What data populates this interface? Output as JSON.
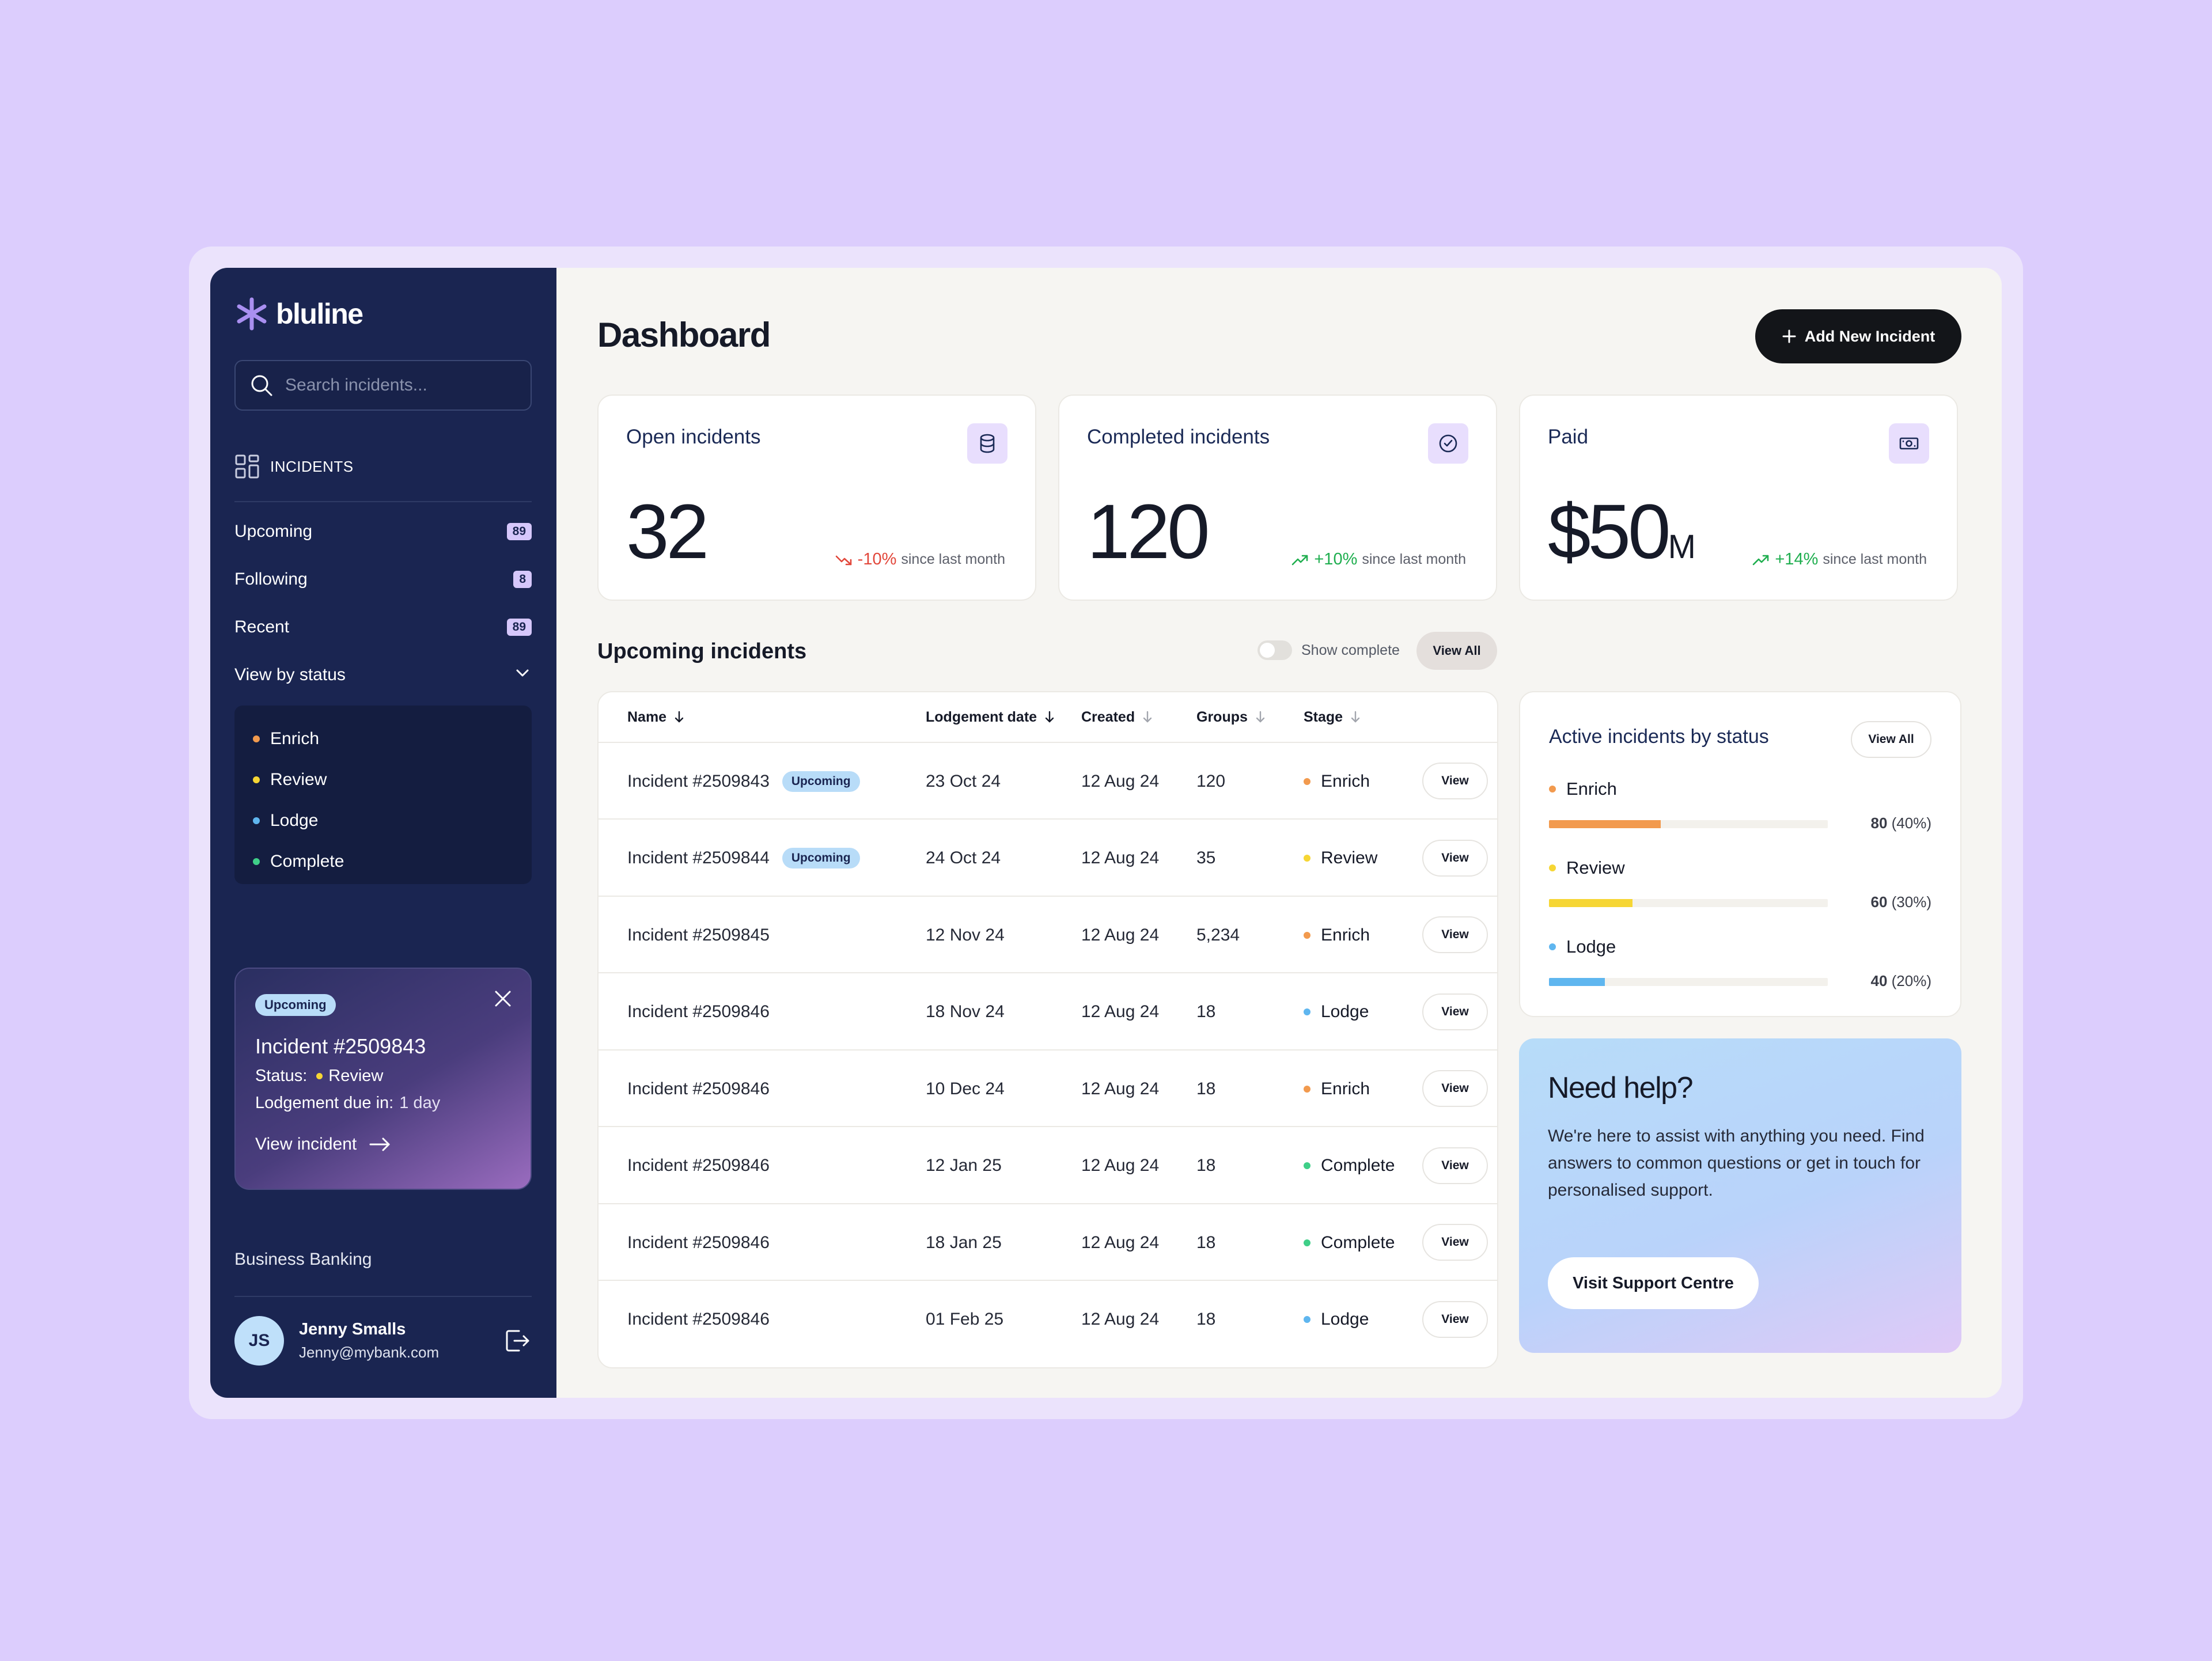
{
  "app": {
    "brand": "bluline"
  },
  "sidebar": {
    "search_placeholder": "Search incidents...",
    "section_label": "INCIDENTS",
    "items": [
      {
        "label": "Upcoming",
        "count": "89"
      },
      {
        "label": "Following",
        "count": "8"
      },
      {
        "label": "Recent",
        "count": "89"
      }
    ],
    "view_by_status": "View by status",
    "statuses": [
      {
        "label": "Enrich",
        "color": "#f29a4e"
      },
      {
        "label": "Review",
        "color": "#f6d634"
      },
      {
        "label": "Lodge",
        "color": "#5fb6ef"
      },
      {
        "label": "Complete",
        "color": "#3fcf88"
      }
    ],
    "promo": {
      "badge": "Upcoming",
      "title": "Incident #2509843",
      "status_label": "Status:",
      "status_value": "Review",
      "status_color": "#f6d634",
      "due_label": "Lodgement due in:",
      "due_value": "1 day",
      "link": "View incident"
    },
    "org": "Business Banking",
    "user": {
      "initials": "JS",
      "name": "Jenny Smalls",
      "email": "Jenny@mybank.com"
    }
  },
  "header": {
    "title": "Dashboard",
    "add_button": "Add New Incident"
  },
  "stats": [
    {
      "label": "Open incidents",
      "value": "32",
      "unit": "",
      "delta": "-10%",
      "direction": "down",
      "suffix": "since last month",
      "icon": "database-icon"
    },
    {
      "label": "Completed incidents",
      "value": "120",
      "unit": "",
      "delta": "+10%",
      "direction": "up",
      "suffix": "since last month",
      "icon": "check-circle-icon"
    },
    {
      "label": "Paid",
      "value": "$50",
      "unit": "M",
      "delta": "+14%",
      "direction": "up",
      "suffix": "since last month",
      "icon": "money-icon"
    }
  ],
  "upcoming": {
    "title": "Upcoming incidents",
    "toggle_label": "Show complete",
    "view_all": "View All",
    "columns": [
      "Name",
      "Lodgement date",
      "Created",
      "Groups",
      "Stage"
    ],
    "rows": [
      {
        "name": "Incident #2509843",
        "badge": "Upcoming",
        "lodgement": "23 Oct 24",
        "created": "12 Aug 24",
        "groups": "120",
        "stage": "Enrich",
        "stage_color": "#f29a4e",
        "action": "View"
      },
      {
        "name": "Incident #2509844",
        "badge": "Upcoming",
        "lodgement": "24 Oct 24",
        "created": "12 Aug 24",
        "groups": "35",
        "stage": "Review",
        "stage_color": "#f6d634",
        "action": "View"
      },
      {
        "name": "Incident #2509845",
        "badge": "",
        "lodgement": "12 Nov 24",
        "created": "12 Aug 24",
        "groups": "5,234",
        "stage": "Enrich",
        "stage_color": "#f29a4e",
        "action": "View"
      },
      {
        "name": "Incident #2509846",
        "badge": "",
        "lodgement": "18 Nov 24",
        "created": "12 Aug 24",
        "groups": "18",
        "stage": "Lodge",
        "stage_color": "#5fb6ef",
        "action": "View"
      },
      {
        "name": "Incident #2509846",
        "badge": "",
        "lodgement": "10 Dec 24",
        "created": "12 Aug 24",
        "groups": "18",
        "stage": "Enrich",
        "stage_color": "#f29a4e",
        "action": "View"
      },
      {
        "name": "Incident #2509846",
        "badge": "",
        "lodgement": "12 Jan 25",
        "created": "12 Aug 24",
        "groups": "18",
        "stage": "Complete",
        "stage_color": "#3fcf88",
        "action": "View"
      },
      {
        "name": "Incident #2509846",
        "badge": "",
        "lodgement": "18 Jan 25",
        "created": "12 Aug 24",
        "groups": "18",
        "stage": "Complete",
        "stage_color": "#3fcf88",
        "action": "View"
      },
      {
        "name": "Incident #2509846",
        "badge": "",
        "lodgement": "01 Feb 25",
        "created": "12 Aug 24",
        "groups": "18",
        "stage": "Lodge",
        "stage_color": "#5fb6ef",
        "action": "View"
      }
    ]
  },
  "active_by_status": {
    "title": "Active incidents by status",
    "view_all": "View All",
    "bars": [
      {
        "label": "Enrich",
        "value": "80",
        "percent": "(40%)",
        "fraction": 0.4,
        "color": "#f29a4e"
      },
      {
        "label": "Review",
        "value": "60",
        "percent": "(30%)",
        "fraction": 0.3,
        "color": "#f6d634"
      },
      {
        "label": "Lodge",
        "value": "40",
        "percent": "(20%)",
        "fraction": 0.2,
        "color": "#5fb6ef"
      }
    ]
  },
  "help": {
    "title": "Need help?",
    "text": "We're here to assist with anything you need. Find answers to common questions or get in touch for personalised support.",
    "button": "Visit Support Centre"
  }
}
